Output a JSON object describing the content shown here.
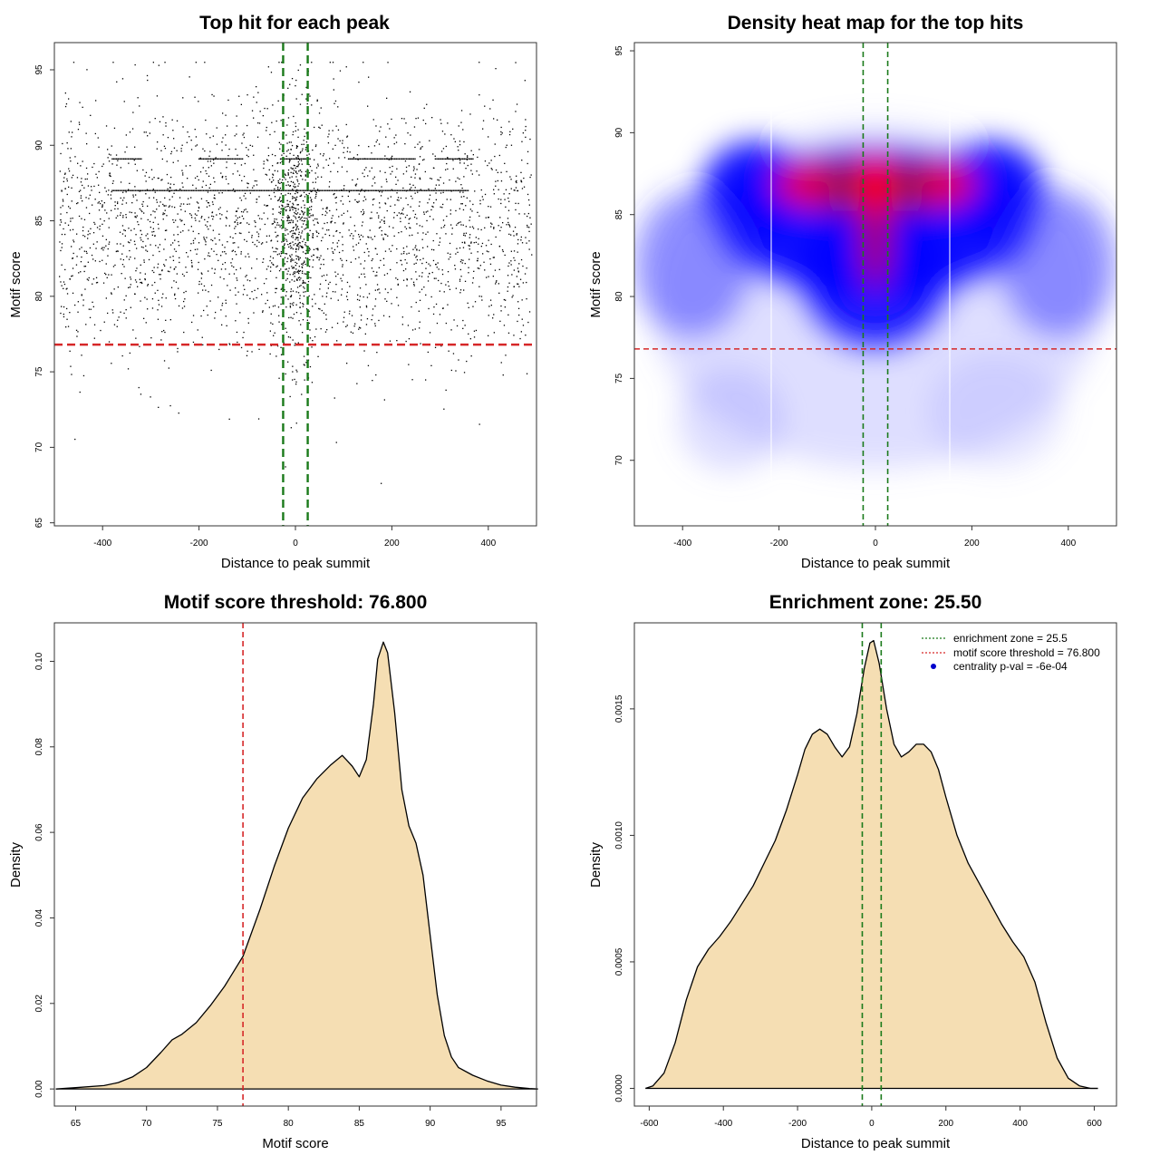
{
  "chart_data": [
    {
      "id": "scatter",
      "type": "scatter",
      "title": "Top hit for each peak",
      "xlabel": "Distance to peak summit",
      "ylabel": "Motif score",
      "xlim": [
        -500,
        500
      ],
      "ylim": [
        64.8,
        96.8
      ],
      "xticks": [
        -400,
        -200,
        0,
        200,
        400
      ],
      "yticks": [
        65,
        70,
        75,
        80,
        85,
        90,
        95
      ],
      "hlines": [
        {
          "y": 76.8,
          "color": "#d62728",
          "style": "dashed"
        }
      ],
      "vlines": [
        {
          "x": -25.5,
          "color": "#1a7a1a",
          "style": "dashed"
        },
        {
          "x": 25.5,
          "color": "#1a7a1a",
          "style": "dashed"
        }
      ],
      "point_color": "#000000",
      "n_points_approx": 3000,
      "score_distribution": {
        "center": 84.5,
        "spread": 4.2
      },
      "horizontal_streaks": [
        {
          "y": 89.1,
          "x_ranges": [
            [
              -380,
              -320
            ],
            [
              -200,
              -110
            ],
            [
              -30,
              30
            ],
            [
              110,
              250
            ],
            [
              290,
              370
            ]
          ]
        },
        {
          "y": 87.0,
          "x_ranges": [
            [
              -380,
              360
            ]
          ]
        }
      ]
    },
    {
      "id": "heatmap",
      "type": "heatmap",
      "title": "Density heat map for the top hits",
      "xlabel": "Distance to peak summit",
      "ylabel": "Motif score",
      "xlim": [
        -500,
        500
      ],
      "ylim": [
        66,
        95.5
      ],
      "xticks": [
        -400,
        -200,
        0,
        200,
        400
      ],
      "yticks": [
        70,
        75,
        80,
        85,
        90,
        95
      ],
      "hlines": [
        {
          "y": 76.8,
          "color": "#d62728",
          "style": "dashed"
        }
      ],
      "vlines": [
        {
          "x": -25.5,
          "color": "#1a7a1a",
          "style": "dashed"
        },
        {
          "x": 25.5,
          "color": "#1a7a1a",
          "style": "dashed"
        }
      ],
      "colors": [
        "#ffffff",
        "#0000ff",
        "#ff0000"
      ]
    },
    {
      "id": "score_density",
      "type": "area",
      "title": "Motif score threshold: 76.800",
      "xlabel": "Motif score",
      "ylabel": "Density",
      "xlim": [
        63.5,
        97.5
      ],
      "ylim": [
        -0.004,
        0.109
      ],
      "xticks": [
        65,
        70,
        75,
        80,
        85,
        90,
        95
      ],
      "yticks": [
        0.0,
        0.02,
        0.04,
        0.06,
        0.08,
        0.1
      ],
      "ytick_labels": [
        "0.00",
        "0.02",
        "0.04",
        "0.06",
        "0.08",
        "0.10"
      ],
      "fill": "#f5deb3",
      "vlines": [
        {
          "x": 76.8,
          "color": "#d62728",
          "style": "dashed"
        }
      ],
      "x": [
        63.6,
        65,
        67,
        68,
        69,
        70,
        71,
        71.8,
        72.5,
        73.5,
        74.5,
        75.5,
        76.8,
        78,
        79,
        80,
        81,
        82,
        83,
        83.8,
        84.5,
        85,
        85.5,
        86,
        86.3,
        86.7,
        87,
        87.5,
        88,
        88.5,
        89,
        89.5,
        90,
        90.5,
        91,
        91.5,
        92,
        93,
        94,
        95,
        96,
        97,
        97.6
      ],
      "y": [
        0.0,
        0.0003,
        0.0008,
        0.0015,
        0.0028,
        0.005,
        0.0085,
        0.0115,
        0.0128,
        0.0155,
        0.0195,
        0.024,
        0.031,
        0.042,
        0.052,
        0.061,
        0.068,
        0.0725,
        0.0758,
        0.078,
        0.0755,
        0.073,
        0.077,
        0.09,
        0.1005,
        0.1045,
        0.102,
        0.088,
        0.07,
        0.0615,
        0.0575,
        0.05,
        0.036,
        0.022,
        0.0125,
        0.0075,
        0.005,
        0.0032,
        0.0019,
        0.0009,
        0.0004,
        0.0001,
        0.0
      ]
    },
    {
      "id": "distance_density",
      "type": "area",
      "title": "Enrichment zone: 25.50",
      "xlabel": "Distance to peak summit",
      "ylabel": "Density",
      "xlim": [
        -640,
        660
      ],
      "ylim": [
        -7e-05,
        0.00184
      ],
      "xticks": [
        -600,
        -400,
        -200,
        0,
        200,
        400,
        600
      ],
      "yticks": [
        0.0,
        0.0005,
        0.001,
        0.0015
      ],
      "ytick_labels": [
        "0.0000",
        "0.0005",
        "0.0010",
        "0.0015"
      ],
      "fill": "#f5deb3",
      "vlines": [
        {
          "x": -25.5,
          "color": "#1a7a1a",
          "style": "dashed"
        },
        {
          "x": 25.5,
          "color": "#1a7a1a",
          "style": "dashed"
        }
      ],
      "x": [
        -610,
        -590,
        -560,
        -530,
        -500,
        -470,
        -440,
        -410,
        -380,
        -350,
        -320,
        -290,
        -260,
        -230,
        -200,
        -180,
        -160,
        -140,
        -120,
        -100,
        -80,
        -60,
        -40,
        -20,
        -5,
        5,
        20,
        40,
        60,
        80,
        100,
        120,
        140,
        160,
        180,
        200,
        230,
        260,
        290,
        320,
        350,
        380,
        410,
        440,
        470,
        500,
        530,
        560,
        590,
        610
      ],
      "y": [
        0.0,
        1e-05,
        6e-05,
        0.00018,
        0.00035,
        0.00048,
        0.00055,
        0.0006,
        0.00066,
        0.00073,
        0.0008,
        0.00089,
        0.00098,
        0.0011,
        0.00124,
        0.00134,
        0.0014,
        0.00142,
        0.0014,
        0.00135,
        0.00131,
        0.00135,
        0.00148,
        0.00166,
        0.00176,
        0.00177,
        0.00168,
        0.0015,
        0.00136,
        0.00131,
        0.00133,
        0.00136,
        0.00136,
        0.00133,
        0.00126,
        0.00115,
        0.001,
        0.00089,
        0.00081,
        0.00073,
        0.00065,
        0.00058,
        0.00052,
        0.00042,
        0.00026,
        0.00012,
        4e-05,
        1e-05,
        0.0,
        0.0
      ],
      "legend": [
        {
          "label": "enrichment zone = 25.5",
          "color": "#1a7a1a",
          "marker": "dotted-line"
        },
        {
          "label": "motif score threshold = 76.800",
          "color": "#d62728",
          "marker": "dotted-line"
        },
        {
          "label": "centrality p-val = -6e-04",
          "color": "#0000cc",
          "marker": "dot"
        }
      ],
      "legend_position": "top-right"
    }
  ]
}
